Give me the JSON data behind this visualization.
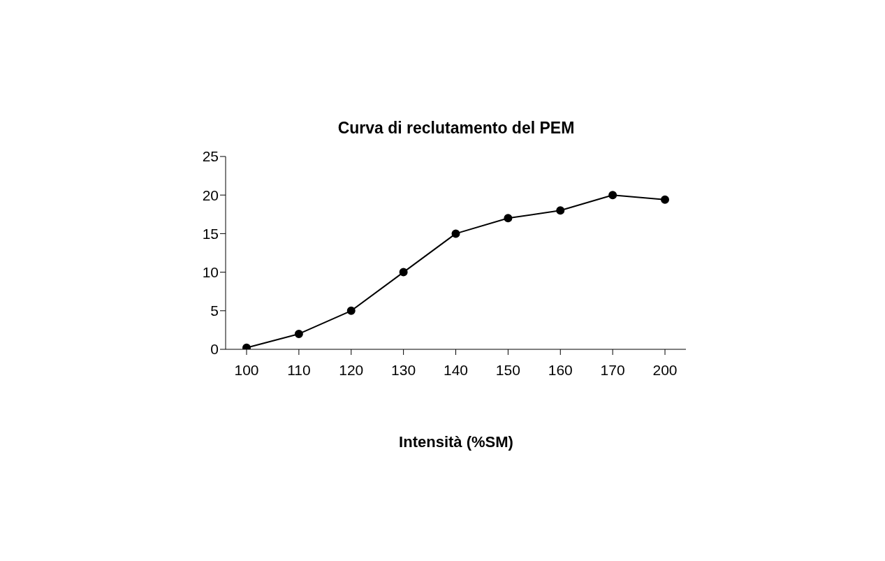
{
  "chart_data": {
    "type": "line",
    "title": "Curva di reclutamento del PEM",
    "xlabel": "Intensità (%SM)",
    "categories": [
      "100",
      "110",
      "120",
      "130",
      "140",
      "150",
      "160",
      "170",
      "200"
    ],
    "values": [
      0.2,
      2,
      5,
      10,
      15,
      17,
      18,
      20,
      19.4
    ],
    "color": "#000000",
    "ylim": [
      0,
      25
    ],
    "yticks": [
      0,
      5,
      10,
      15,
      20,
      25
    ],
    "grid": false,
    "marker": "circle",
    "line_style": "solid"
  }
}
